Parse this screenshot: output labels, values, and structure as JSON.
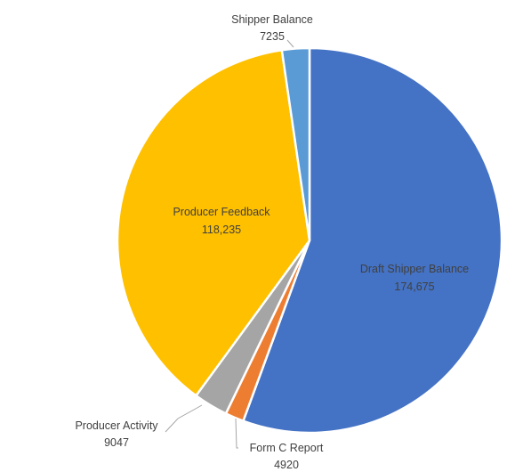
{
  "chart_data": {
    "type": "pie",
    "title": "",
    "slices": [
      {
        "name": "Draft Shipper Balance",
        "label_value": "174,675",
        "value": 174675,
        "color": "#4472c4"
      },
      {
        "name": "Form C Report",
        "label_value": "4920",
        "value": 4920,
        "color": "#ed7d31"
      },
      {
        "name": "Producer Activity",
        "label_value": "9047",
        "value": 9047,
        "color": "#a5a5a5"
      },
      {
        "name": "Producer Feedback",
        "label_value": "118,235",
        "value": 118235,
        "color": "#ffc000"
      },
      {
        "name": "Shipper Balance",
        "label_value": "7235",
        "value": 7235,
        "color": "#5b9bd5"
      }
    ],
    "start": "12 o'clock",
    "direction": "clockwise",
    "legend": "none"
  }
}
